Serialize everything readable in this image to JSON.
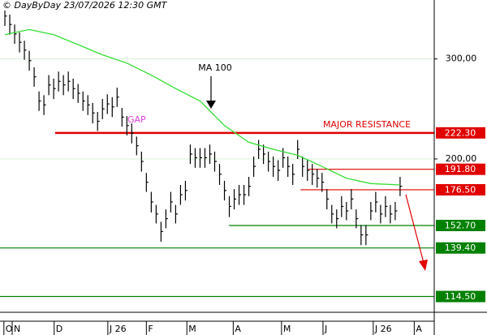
{
  "chart_data": {
    "type": "ohlc",
    "title": "© DayByDay 23/07/2026  12:30 GMT",
    "log_scale": true,
    "xlim": [
      -1,
      88
    ],
    "ylim": [
      107.4,
      381
    ],
    "yticks": [
      {
        "value": 200,
        "label": "200,00"
      },
      {
        "value": 300,
        "label": "300,00"
      }
    ],
    "xticks": [
      {
        "value": -0.2,
        "label": "O"
      },
      {
        "value": 1.5,
        "label": "N"
      },
      {
        "value": 10.1,
        "label": "D"
      },
      {
        "value": 21.1,
        "label": "J 26"
      },
      {
        "value": 29,
        "label": "F"
      },
      {
        "value": 37.3,
        "label": "M"
      },
      {
        "value": 46.8,
        "label": "A"
      },
      {
        "value": 56.7,
        "label": "M"
      },
      {
        "value": 65.2,
        "label": "J"
      },
      {
        "value": 75.5,
        "label": "J 26"
      },
      {
        "value": 83.9,
        "label": "A"
      }
    ],
    "bar_color": "#000000",
    "high": [
      371,
      359,
      345,
      334,
      323,
      310,
      290,
      263,
      259,
      281,
      277,
      285,
      281,
      285,
      277,
      271,
      263,
      259,
      251,
      242,
      255,
      260,
      257,
      267,
      246,
      238,
      231,
      219,
      206,
      189,
      175,
      166,
      155,
      163,
      175,
      166,
      180,
      183,
      212,
      209,
      209,
      209,
      212,
      206,
      196,
      183,
      172,
      177,
      180,
      180,
      186,
      202,
      216,
      212,
      206,
      202,
      199,
      209,
      202,
      196,
      216,
      202,
      199,
      196,
      192,
      189,
      177,
      166,
      163,
      172,
      168,
      177,
      163,
      153,
      153,
      168,
      175,
      166,
      172,
      166,
      168,
      186
    ],
    "low": [
      343,
      331,
      319,
      308,
      299,
      286,
      268,
      243,
      239,
      259,
      255,
      263,
      259,
      263,
      255,
      251,
      243,
      239,
      231,
      224,
      235,
      240,
      237,
      247,
      228,
      220,
      213,
      203,
      190,
      175,
      161,
      154,
      143,
      151,
      161,
      154,
      166,
      169,
      196,
      193,
      193,
      193,
      196,
      190,
      180,
      169,
      158,
      163,
      166,
      166,
      172,
      186,
      200,
      196,
      190,
      186,
      183,
      193,
      186,
      180,
      200,
      186,
      183,
      180,
      178,
      175,
      163,
      154,
      151,
      158,
      156,
      163,
      151,
      141,
      141,
      156,
      161,
      154,
      158,
      154,
      156,
      172
    ],
    "close": [
      357,
      345,
      332,
      321,
      311,
      298,
      279,
      253,
      249,
      270,
      266,
      274,
      270,
      274,
      266,
      261,
      253,
      249,
      241,
      233,
      245,
      250,
      247,
      257,
      237,
      229,
      222,
      211,
      198,
      182,
      168,
      160,
      149,
      157,
      168,
      160,
      173,
      176,
      204,
      201,
      201,
      201,
      204,
      198,
      188,
      176,
      165,
      170,
      173,
      173,
      179,
      194,
      208,
      204,
      198,
      194,
      191,
      201,
      194,
      188,
      208,
      194,
      191,
      188,
      185,
      182,
      170,
      160,
      157,
      165,
      162,
      170,
      157,
      147,
      147,
      162,
      168,
      160,
      165,
      160,
      162,
      179
    ],
    "ma": {
      "name": "MA 100",
      "color": "#33dd33",
      "x": [
        0,
        5,
        10,
        15,
        20,
        25,
        30,
        35,
        40,
        45,
        50,
        55,
        60,
        65,
        70,
        75,
        81
      ],
      "values": [
        331,
        338,
        331,
        318,
        305,
        295,
        281,
        266,
        253,
        229,
        214,
        208,
        203,
        194,
        185,
        181,
        180
      ]
    },
    "levels": [
      {
        "value": 222.3,
        "label": "222.30",
        "color": "#e00000",
        "x_start": 10.3
      },
      {
        "value": 191.8,
        "label": "191.80",
        "color": "#e00000",
        "x_start": 62.2
      },
      {
        "value": 176.5,
        "label": "176.50",
        "color": "#e00000",
        "x_start": 60.6
      },
      {
        "value": 152.7,
        "label": "152.70",
        "color": "#008000",
        "x_start": 45.9
      },
      {
        "value": 139.4,
        "label": "139.40",
        "color": "#008000",
        "x_start": -1
      },
      {
        "value": 114.5,
        "label": "114.50",
        "color": "#008000",
        "x_start": -1
      }
    ],
    "annotations": {
      "gap": "GAP",
      "resistance": "MAJOR RESISTANCE"
    }
  }
}
